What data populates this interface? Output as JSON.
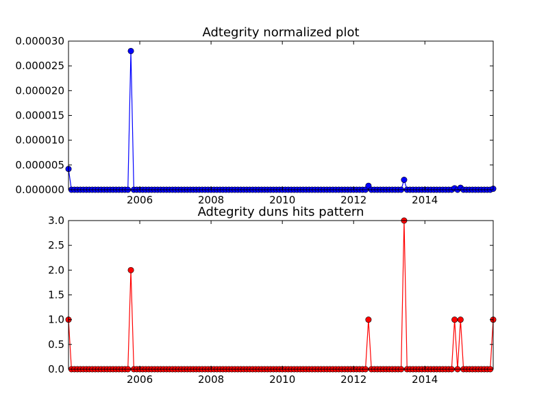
{
  "chart_data": [
    {
      "type": "line",
      "title": "Adtegrity normalized plot",
      "xlabel": "",
      "ylabel": "",
      "xlim": [
        "2004-01",
        "2015-12"
      ],
      "ylim": [
        0,
        3e-05
      ],
      "x_ticks": [
        {
          "value": "2006-01",
          "label": "2006"
        },
        {
          "value": "2008-01",
          "label": "2008"
        },
        {
          "value": "2010-01",
          "label": "2010"
        },
        {
          "value": "2012-01",
          "label": "2012"
        },
        {
          "value": "2014-01",
          "label": "2014"
        }
      ],
      "y_ticks": [
        {
          "value": 0,
          "label": "0.000000"
        },
        {
          "value": 5e-06,
          "label": "0.000005"
        },
        {
          "value": 1e-05,
          "label": "0.000010"
        },
        {
          "value": 1.5e-05,
          "label": "0.000015"
        },
        {
          "value": 2e-05,
          "label": "0.000020"
        },
        {
          "value": 2.5e-05,
          "label": "0.000025"
        },
        {
          "value": 3e-05,
          "label": "0.000030"
        }
      ],
      "grid": false,
      "color": "#0000ff",
      "default_value": 0,
      "points": [
        {
          "x": "2004-01",
          "y": 4.2e-06
        },
        {
          "x": "2005-10",
          "y": 2.8e-05
        },
        {
          "x": "2012-06",
          "y": 8e-07
        },
        {
          "x": "2013-06",
          "y": 2e-06
        },
        {
          "x": "2014-11",
          "y": 3e-07
        },
        {
          "x": "2015-01",
          "y": 4e-07
        },
        {
          "x": "2015-12",
          "y": 2e-07
        }
      ]
    },
    {
      "type": "line",
      "title": "Adtegrity duns hits pattern",
      "xlabel": "",
      "ylabel": "",
      "xlim": [
        "2004-01",
        "2015-12"
      ],
      "ylim": [
        0,
        3
      ],
      "x_ticks": [
        {
          "value": "2006-01",
          "label": "2006"
        },
        {
          "value": "2008-01",
          "label": "2008"
        },
        {
          "value": "2010-01",
          "label": "2010"
        },
        {
          "value": "2012-01",
          "label": "2012"
        },
        {
          "value": "2014-01",
          "label": "2014"
        }
      ],
      "y_ticks": [
        {
          "value": 0,
          "label": "0.0"
        },
        {
          "value": 0.5,
          "label": "0.5"
        },
        {
          "value": 1,
          "label": "1.0"
        },
        {
          "value": 1.5,
          "label": "1.5"
        },
        {
          "value": 2,
          "label": "2.0"
        },
        {
          "value": 2.5,
          "label": "2.5"
        },
        {
          "value": 3,
          "label": "3.0"
        }
      ],
      "grid": false,
      "color": "#ff0000",
      "default_value": 0,
      "points": [
        {
          "x": "2004-01",
          "y": 1
        },
        {
          "x": "2005-10",
          "y": 2
        },
        {
          "x": "2012-06",
          "y": 1
        },
        {
          "x": "2013-06",
          "y": 3
        },
        {
          "x": "2014-11",
          "y": 1
        },
        {
          "x": "2015-01",
          "y": 1
        },
        {
          "x": "2015-12",
          "y": 1
        }
      ]
    }
  ]
}
